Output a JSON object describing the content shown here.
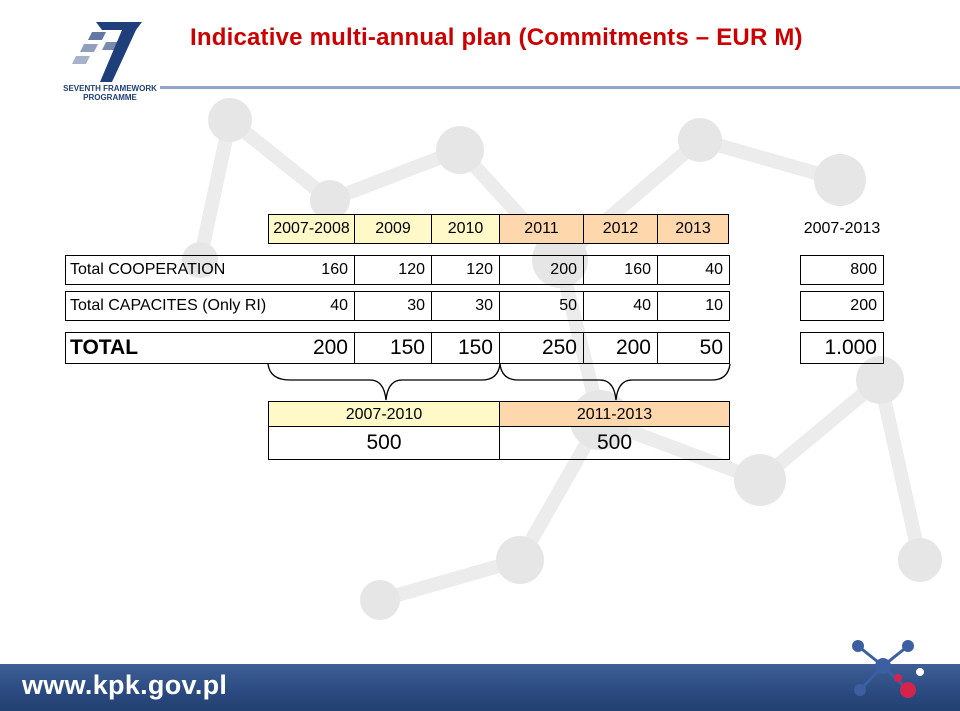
{
  "logo": {
    "text_line1": "SEVENTH FRAMEWORK",
    "text_line2": "PROGRAMME"
  },
  "title": "Indicative multi-annual plan (Commitments – EUR M)",
  "table": {
    "headers": [
      "2007-2008",
      "2009",
      "2010",
      "2011",
      "2012",
      "2013"
    ],
    "total_header": "2007-2013",
    "rows": [
      {
        "label": "Total COOPERATION",
        "values": [
          "160",
          "120",
          "120",
          "200",
          "160",
          "40"
        ],
        "total": "800"
      },
      {
        "label": "Total CAPACITES (Only RI)",
        "values": [
          "40",
          "30",
          "30",
          "50",
          "40",
          "10"
        ],
        "total": "200"
      },
      {
        "label": "TOTAL",
        "values": [
          "200",
          "150",
          "150",
          "250",
          "200",
          "50"
        ],
        "total": "1.000"
      }
    ]
  },
  "summary": {
    "periods": [
      {
        "label": "2007-2010",
        "value": "500"
      },
      {
        "label": "2011-2013",
        "value": "500"
      }
    ]
  },
  "footer": {
    "url": "www.kpk.gov.pl"
  },
  "colors": {
    "title": "#cc0000",
    "header_yellow": "#fff9c8",
    "header_orange": "#ffd7ad",
    "footer_bar": "#2a4a80"
  }
}
